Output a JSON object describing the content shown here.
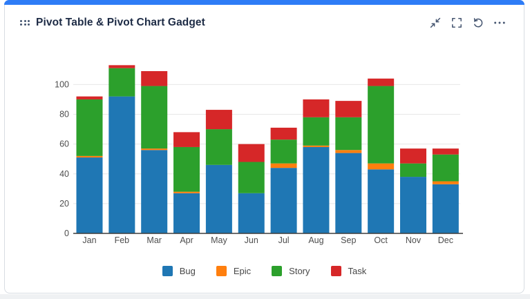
{
  "card": {
    "header": {
      "title": "Pivot Table & Pivot Chart Gadget",
      "actions": [
        "minimize",
        "maximize",
        "refresh",
        "more-options"
      ]
    }
  },
  "colors": {
    "accent": "#2e7cf6",
    "card_border": "#d7dce2",
    "title_text": "#1d2b45",
    "icon": "#44546f",
    "axis_text": "#4d4d4d",
    "gridline": "#e7e7e7",
    "axis_line": "#3d3d3d",
    "page_bottom": "#eff1f3"
  },
  "chart_data": {
    "type": "bar",
    "stacked": true,
    "title": "",
    "categories": [
      "Jan",
      "Feb",
      "Mar",
      "Apr",
      "May",
      "Jun",
      "Jul",
      "Aug",
      "Sep",
      "Oct",
      "Nov",
      "Dec"
    ],
    "series": [
      {
        "name": "Bug",
        "color": "#1f77b4",
        "values": [
          51,
          92,
          56,
          27,
          46,
          27,
          44,
          58,
          54,
          43,
          38,
          33
        ]
      },
      {
        "name": "Epic",
        "color": "#ff7f0e",
        "values": [
          1,
          0,
          1,
          1,
          0,
          0,
          3,
          1,
          2,
          4,
          0,
          2
        ]
      },
      {
        "name": "Story",
        "color": "#2ca02c",
        "values": [
          38,
          19,
          42,
          30,
          24,
          21,
          16,
          19,
          22,
          52,
          9,
          18
        ]
      },
      {
        "name": "Task",
        "color": "#d62728",
        "values": [
          2,
          2,
          10,
          10,
          13,
          12,
          8,
          12,
          11,
          5,
          10,
          4
        ]
      }
    ],
    "xlabel": "",
    "ylabel": "",
    "yticks": [
      0,
      20,
      40,
      60,
      80,
      100
    ],
    "ylim": [
      0,
      120
    ],
    "grid": true,
    "legend_position": "bottom"
  }
}
